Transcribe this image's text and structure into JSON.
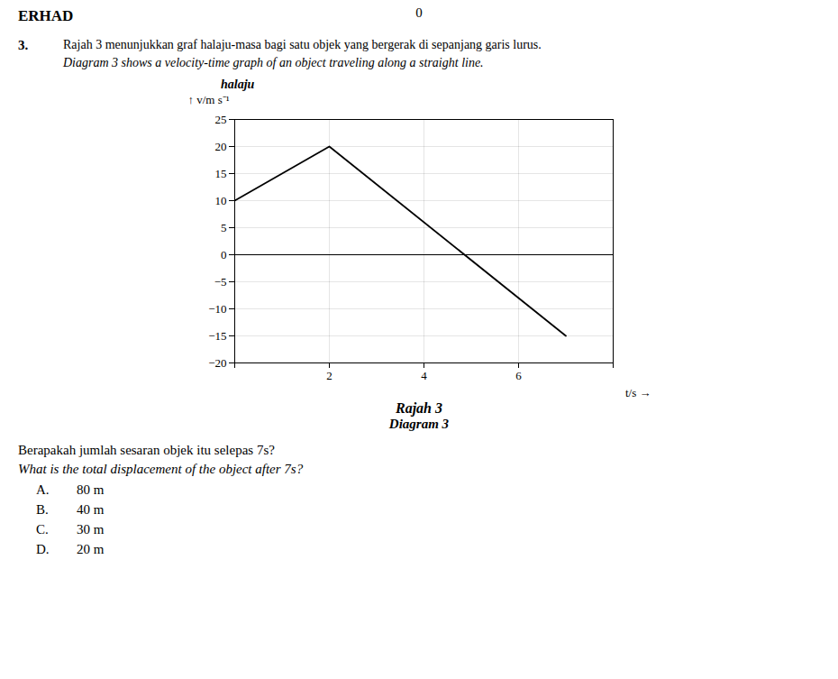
{
  "chart_data": {
    "type": "line",
    "title": "halaju",
    "xlabel": "t/s",
    "ylabel": "v/m s⁻¹",
    "caption": [
      "Rajah 3",
      "Diagram 3"
    ],
    "header": [
      "ERHAD",
      "0"
    ],
    "question_number": "3.",
    "question": [
      "Rajah 3 menunjukkan graf halaju-masa bagi satu objek yang bergerak di sepanjang garis lurus.",
      "Diagram 3 shows a velocity-time graph of an object traveling along a straight line."
    ],
    "prompt": [
      "Berapakah jumlah sesaran objek itu selepas 7s?",
      "What is the total displacement of the object after 7s?"
    ],
    "choices": [
      [
        "A.",
        "80 m"
      ],
      [
        "B.",
        "40 m"
      ],
      [
        "C.",
        "30 m"
      ],
      [
        "D.",
        "20 m"
      ]
    ],
    "x": [
      0,
      2,
      7
    ],
    "values": [
      10,
      20,
      -15
    ],
    "color": "#000000",
    "xlim": [
      0,
      8
    ],
    "ylim": [
      -20,
      25
    ],
    "xticks": [
      {
        "value": 0,
        "label": null
      },
      2,
      4,
      6,
      {
        "value": 8,
        "label": null
      }
    ],
    "yticks": [
      -20,
      -15,
      -10,
      -5,
      0,
      5,
      10,
      15,
      20,
      25
    ],
    "grid": true
  }
}
